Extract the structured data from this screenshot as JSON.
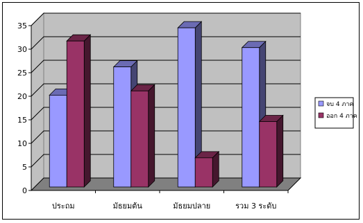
{
  "chart_data": {
    "type": "bar",
    "categories": [
      "ประถม",
      "มัธยมต้น",
      "มัธยมปลาย",
      "รวม 3 ระดับ"
    ],
    "series": [
      {
        "name": "จบ 4 ภาค",
        "values": [
          19.5,
          25.5,
          33.8,
          29.6
        ],
        "color": "#9999ff"
      },
      {
        "name": "ออก 4 ภาค",
        "values": [
          31.0,
          20.4,
          6.2,
          13.9
        ],
        "color": "#993366"
      }
    ],
    "ylim": [
      0,
      35
    ],
    "yticks": [
      "0",
      "5",
      "10",
      "15",
      "20",
      "25",
      "30",
      "35"
    ],
    "grid": true,
    "legend_position": "right",
    "plot_background": "#c0c0c0",
    "floor_color": "#808080"
  }
}
